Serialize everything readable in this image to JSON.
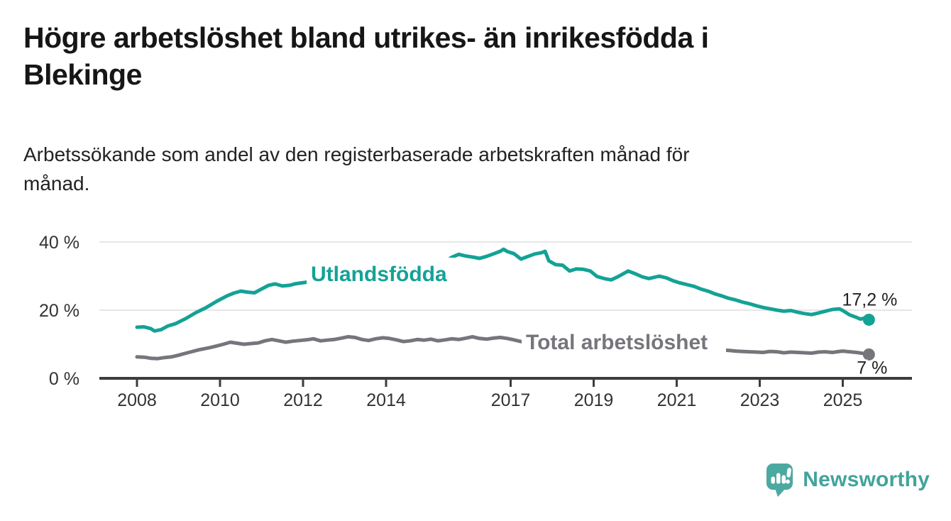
{
  "header": {
    "title_lines": [
      "Högre arbetslöshet bland utrikes- än inrikesfödda i",
      "Blekinge"
    ],
    "subtitle_lines": [
      "Arbetssökande som andel av den registerbaserade arbetskraften månad för",
      "månad."
    ]
  },
  "chart_data": {
    "type": "line",
    "unit": "%",
    "title": "Högre arbetslöshet bland utrikes- än inrikesfödda i Blekinge",
    "subtitle": "Arbetssökande som andel av den registerbaserade arbetskraften månad för månad.",
    "x_axis": {
      "ticks": [
        "2008",
        "2010",
        "2012",
        "2014",
        "2017",
        "2019",
        "2021",
        "2023",
        "2025"
      ],
      "tick_years": [
        2008,
        2010,
        2012,
        2014,
        2017,
        2019,
        2021,
        2023,
        2025
      ],
      "range": [
        2007.1,
        2026.7
      ]
    },
    "y_axis": {
      "ticks": [
        {
          "value": 0,
          "label": "0 %"
        },
        {
          "value": 20,
          "label": "20 %"
        },
        {
          "value": 40,
          "label": "40 %"
        }
      ],
      "range": [
        0,
        44
      ],
      "gridlines": [
        20,
        40
      ],
      "axis_value": 0
    },
    "legend_position": "inline-labels-on-lines",
    "series": [
      {
        "name": "Utlandsfödda",
        "color": "#14a295",
        "end_label": "17,2 %",
        "end_value": 17.2,
        "points": [
          [
            2008.0,
            15.0
          ],
          [
            2008.17,
            15.1
          ],
          [
            2008.33,
            14.6
          ],
          [
            2008.42,
            13.9
          ],
          [
            2008.58,
            14.3
          ],
          [
            2008.75,
            15.4
          ],
          [
            2008.92,
            16.0
          ],
          [
            2009.17,
            17.5
          ],
          [
            2009.42,
            19.3
          ],
          [
            2009.67,
            20.8
          ],
          [
            2009.92,
            22.6
          ],
          [
            2010.17,
            24.2
          ],
          [
            2010.33,
            25.0
          ],
          [
            2010.5,
            25.6
          ],
          [
            2010.67,
            25.3
          ],
          [
            2010.83,
            25.1
          ],
          [
            2011.0,
            26.2
          ],
          [
            2011.17,
            27.3
          ],
          [
            2011.33,
            27.7
          ],
          [
            2011.5,
            27.1
          ],
          [
            2011.67,
            27.3
          ],
          [
            2011.83,
            27.8
          ],
          [
            2012.08,
            28.2
          ],
          [
            2012.25,
            29.3
          ],
          [
            2012.42,
            28.4
          ],
          [
            2012.58,
            28.0
          ],
          [
            2012.75,
            28.3
          ],
          [
            2012.92,
            28.8
          ],
          [
            2013.08,
            28.5
          ],
          [
            2013.25,
            28.9
          ],
          [
            2013.42,
            28.6
          ],
          [
            2013.58,
            28.9
          ],
          [
            2013.75,
            29.2
          ],
          [
            2013.92,
            28.8
          ],
          [
            2014.08,
            29.3
          ],
          [
            2014.25,
            29.6
          ],
          [
            2014.42,
            29.2
          ],
          [
            2014.58,
            29.5
          ],
          [
            2014.75,
            29.9
          ],
          [
            2014.92,
            29.6
          ],
          [
            2015.08,
            30.3
          ],
          [
            2015.25,
            32.0
          ],
          [
            2015.42,
            34.2
          ],
          [
            2015.58,
            35.5
          ],
          [
            2015.75,
            36.4
          ],
          [
            2015.92,
            35.9
          ],
          [
            2016.08,
            35.6
          ],
          [
            2016.25,
            35.2
          ],
          [
            2016.42,
            35.8
          ],
          [
            2016.58,
            36.5
          ],
          [
            2016.75,
            37.3
          ],
          [
            2016.83,
            37.9
          ],
          [
            2016.92,
            37.2
          ],
          [
            2017.08,
            36.6
          ],
          [
            2017.25,
            35.0
          ],
          [
            2017.42,
            35.8
          ],
          [
            2017.58,
            36.5
          ],
          [
            2017.75,
            36.9
          ],
          [
            2017.83,
            37.3
          ],
          [
            2017.92,
            34.5
          ],
          [
            2018.08,
            33.4
          ],
          [
            2018.25,
            33.2
          ],
          [
            2018.42,
            31.5
          ],
          [
            2018.58,
            32.1
          ],
          [
            2018.75,
            32.0
          ],
          [
            2018.92,
            31.5
          ],
          [
            2019.08,
            29.9
          ],
          [
            2019.25,
            29.3
          ],
          [
            2019.42,
            28.9
          ],
          [
            2019.58,
            29.8
          ],
          [
            2019.83,
            31.5
          ],
          [
            2020.0,
            30.7
          ],
          [
            2020.17,
            29.8
          ],
          [
            2020.33,
            29.3
          ],
          [
            2020.58,
            30.0
          ],
          [
            2020.75,
            29.5
          ],
          [
            2020.92,
            28.6
          ],
          [
            2021.08,
            28.0
          ],
          [
            2021.25,
            27.5
          ],
          [
            2021.42,
            27.0
          ],
          [
            2021.58,
            26.2
          ],
          [
            2021.75,
            25.6
          ],
          [
            2021.92,
            24.8
          ],
          [
            2022.08,
            24.2
          ],
          [
            2022.25,
            23.5
          ],
          [
            2022.42,
            23.0
          ],
          [
            2022.58,
            22.4
          ],
          [
            2022.75,
            21.9
          ],
          [
            2022.92,
            21.3
          ],
          [
            2023.08,
            20.8
          ],
          [
            2023.25,
            20.4
          ],
          [
            2023.42,
            20.0
          ],
          [
            2023.58,
            19.7
          ],
          [
            2023.75,
            19.9
          ],
          [
            2023.92,
            19.4
          ],
          [
            2024.08,
            19.0
          ],
          [
            2024.25,
            18.7
          ],
          [
            2024.42,
            19.2
          ],
          [
            2024.58,
            19.7
          ],
          [
            2024.75,
            20.2
          ],
          [
            2024.92,
            20.4
          ],
          [
            2025.0,
            19.9
          ],
          [
            2025.17,
            18.6
          ],
          [
            2025.33,
            17.9
          ],
          [
            2025.42,
            17.4
          ],
          [
            2025.5,
            17.6
          ],
          [
            2025.63,
            17.2
          ]
        ]
      },
      {
        "name": "Total arbetslöshet",
        "color": "#77757c",
        "end_label": "7 %",
        "end_value": 7.0,
        "points": [
          [
            2008.0,
            6.3
          ],
          [
            2008.17,
            6.2
          ],
          [
            2008.33,
            5.9
          ],
          [
            2008.5,
            5.8
          ],
          [
            2008.67,
            6.1
          ],
          [
            2008.83,
            6.3
          ],
          [
            2009.0,
            6.8
          ],
          [
            2009.25,
            7.6
          ],
          [
            2009.5,
            8.4
          ],
          [
            2009.75,
            9.0
          ],
          [
            2009.92,
            9.5
          ],
          [
            2010.08,
            10.0
          ],
          [
            2010.25,
            10.6
          ],
          [
            2010.42,
            10.3
          ],
          [
            2010.58,
            10.0
          ],
          [
            2010.75,
            10.2
          ],
          [
            2010.92,
            10.4
          ],
          [
            2011.08,
            11.0
          ],
          [
            2011.25,
            11.4
          ],
          [
            2011.42,
            11.0
          ],
          [
            2011.58,
            10.6
          ],
          [
            2011.75,
            10.9
          ],
          [
            2011.92,
            11.1
          ],
          [
            2012.08,
            11.3
          ],
          [
            2012.25,
            11.6
          ],
          [
            2012.42,
            11.0
          ],
          [
            2012.58,
            11.2
          ],
          [
            2012.75,
            11.4
          ],
          [
            2012.92,
            11.8
          ],
          [
            2013.08,
            12.2
          ],
          [
            2013.25,
            12.0
          ],
          [
            2013.42,
            11.4
          ],
          [
            2013.58,
            11.1
          ],
          [
            2013.75,
            11.6
          ],
          [
            2013.92,
            11.9
          ],
          [
            2014.08,
            11.7
          ],
          [
            2014.25,
            11.3
          ],
          [
            2014.42,
            10.8
          ],
          [
            2014.58,
            11.0
          ],
          [
            2014.75,
            11.4
          ],
          [
            2014.92,
            11.2
          ],
          [
            2015.08,
            11.5
          ],
          [
            2015.25,
            11.0
          ],
          [
            2015.42,
            11.3
          ],
          [
            2015.58,
            11.6
          ],
          [
            2015.75,
            11.4
          ],
          [
            2015.92,
            11.8
          ],
          [
            2016.08,
            12.2
          ],
          [
            2016.25,
            11.7
          ],
          [
            2016.42,
            11.5
          ],
          [
            2016.58,
            11.8
          ],
          [
            2016.75,
            12.0
          ],
          [
            2016.92,
            11.7
          ],
          [
            2017.08,
            11.3
          ],
          [
            2017.25,
            10.8
          ],
          [
            2017.42,
            10.4
          ],
          [
            2017.75,
            10.5
          ],
          [
            2017.92,
            10.2
          ],
          [
            2018.25,
            9.8
          ],
          [
            2018.58,
            9.5
          ],
          [
            2018.92,
            9.3
          ],
          [
            2019.25,
            9.1
          ],
          [
            2019.58,
            9.0
          ],
          [
            2019.92,
            9.2
          ],
          [
            2020.25,
            9.8
          ],
          [
            2020.58,
            9.6
          ],
          [
            2020.92,
            9.3
          ],
          [
            2021.25,
            8.9
          ],
          [
            2021.58,
            8.6
          ],
          [
            2021.92,
            8.4
          ],
          [
            2022.08,
            8.3
          ],
          [
            2022.25,
            8.2
          ],
          [
            2022.42,
            8.0
          ],
          [
            2022.58,
            7.9
          ],
          [
            2022.75,
            7.8
          ],
          [
            2022.92,
            7.7
          ],
          [
            2023.08,
            7.6
          ],
          [
            2023.25,
            7.9
          ],
          [
            2023.42,
            7.8
          ],
          [
            2023.58,
            7.5
          ],
          [
            2023.75,
            7.7
          ],
          [
            2023.92,
            7.6
          ],
          [
            2024.08,
            7.5
          ],
          [
            2024.25,
            7.4
          ],
          [
            2024.42,
            7.7
          ],
          [
            2024.58,
            7.8
          ],
          [
            2024.75,
            7.6
          ],
          [
            2024.92,
            7.9
          ],
          [
            2025.0,
            8.0
          ],
          [
            2025.17,
            7.8
          ],
          [
            2025.33,
            7.6
          ],
          [
            2025.5,
            7.3
          ],
          [
            2025.63,
            7.0
          ]
        ]
      }
    ]
  },
  "branding": {
    "logo_text": "Newsworthy",
    "logo_color": "#41a49b",
    "logo_icon": "speech-bubble-bar-chart-exclamation"
  }
}
